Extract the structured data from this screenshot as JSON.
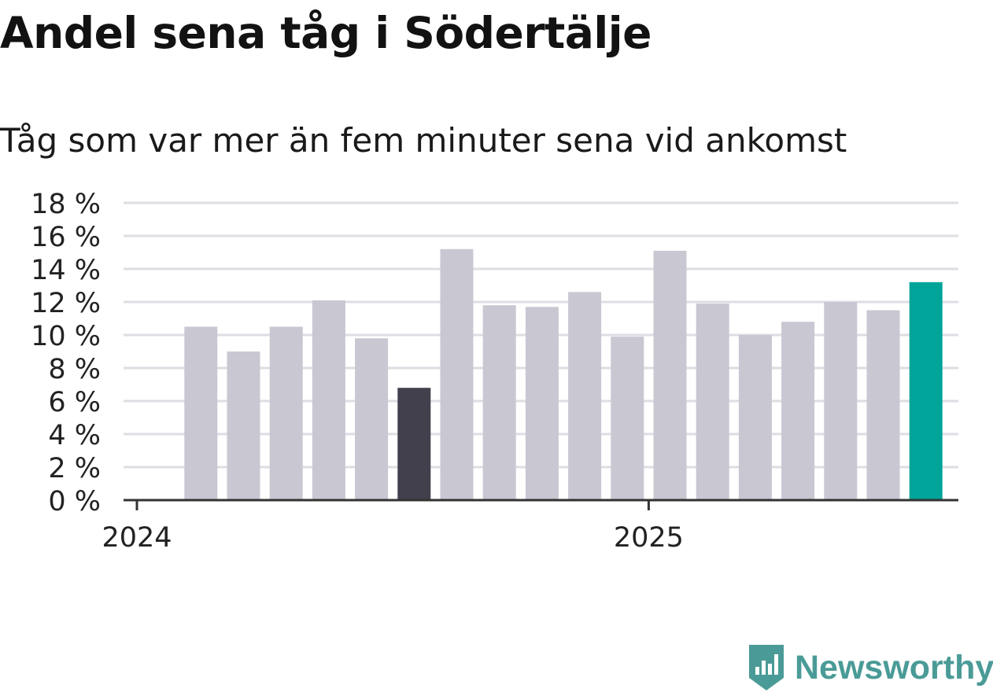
{
  "title": "Andel sena tåg i Södertälje",
  "subtitle": "Tåg som var mer än fem minuter sena vid ankomst",
  "brand": {
    "name": "Newsworthy",
    "logo_icon": "newsworthy-bar-chart-logo-icon",
    "color": "#4a9b97"
  },
  "colors": {
    "default_bar": "#c9c7d2",
    "lowest_bar": "#43404d",
    "latest_bar": "#00a499",
    "grid": "#dedde3",
    "axis": "#333333"
  },
  "chart_data": {
    "type": "bar",
    "title": "Andel sena tåg i Södertälje",
    "subtitle": "Tåg som var mer än fem minuter sena vid ankomst",
    "xlabel": "",
    "ylabel": "",
    "ylim": [
      0,
      18
    ],
    "y_ticks": [
      0,
      2,
      4,
      6,
      8,
      10,
      12,
      14,
      16,
      18
    ],
    "y_tick_labels": [
      "0 %",
      "2 %",
      "4 %",
      "6 %",
      "8 %",
      "10 %",
      "12 %",
      "14 %",
      "16 %",
      "18 %"
    ],
    "x_tick_labels": [
      "2024",
      "2025"
    ],
    "grid": true,
    "categories": [
      "2024-01",
      "2024-02",
      "2024-03",
      "2024-04",
      "2024-05",
      "2024-06",
      "2024-07",
      "2024-08",
      "2024-09",
      "2024-10",
      "2024-11",
      "2024-12",
      "2025-01",
      "2025-02",
      "2025-03",
      "2025-04",
      "2025-05",
      "2025-06",
      "2025-07"
    ],
    "values": [
      null,
      10.5,
      9.0,
      10.5,
      12.1,
      9.8,
      6.8,
      15.2,
      11.8,
      11.7,
      12.6,
      9.9,
      15.1,
      11.9,
      10.0,
      10.8,
      12.0,
      11.5,
      13.2
    ],
    "highlight": {
      "lowest": "2024-07",
      "latest": "2025-07"
    }
  }
}
